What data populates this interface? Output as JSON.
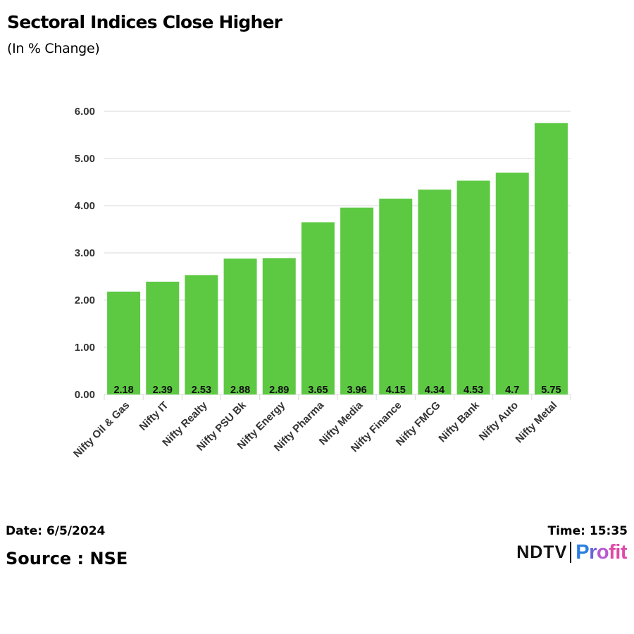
{
  "header": {
    "title": "Sectoral Indices Close Higher",
    "subtitle": "(In % Change)"
  },
  "footer": {
    "date": "Date: 6/5/2024",
    "time": "Time: 15:35",
    "source": "Source : NSE",
    "logo_left": "NDTV",
    "logo_right": [
      "P",
      "r",
      "o",
      "fit"
    ]
  },
  "colors": {
    "bar": "#5dc943",
    "grid": "#d9d9d9",
    "tick_text": "#333333"
  },
  "chart_data": {
    "type": "bar",
    "categories": [
      "Nifty Oil & Gas",
      "Nifty IT",
      "Nifty Realty",
      "Nifty PSU Bk",
      "Nifty Energy",
      "Nifty Pharma",
      "Nifty Media",
      "Nifty Finance",
      "Nifty FMCG",
      "Nifty Bank",
      "Nifty Auto",
      "Nifty Metal"
    ],
    "values": [
      2.18,
      2.39,
      2.53,
      2.88,
      2.89,
      3.65,
      3.96,
      4.15,
      4.34,
      4.53,
      4.7,
      5.75
    ],
    "value_labels": [
      "2.18",
      "2.39",
      "2.53",
      "2.88",
      "2.89",
      "3.65",
      "3.96",
      "4.15",
      "4.34",
      "4.53",
      "4.7",
      "5.75"
    ],
    "yticks": [
      "0.00",
      "1.00",
      "2.00",
      "3.00",
      "4.00",
      "5.00",
      "6.00"
    ],
    "ylim": [
      0,
      6
    ],
    "grid": true,
    "xlabel": "",
    "ylabel": ""
  }
}
